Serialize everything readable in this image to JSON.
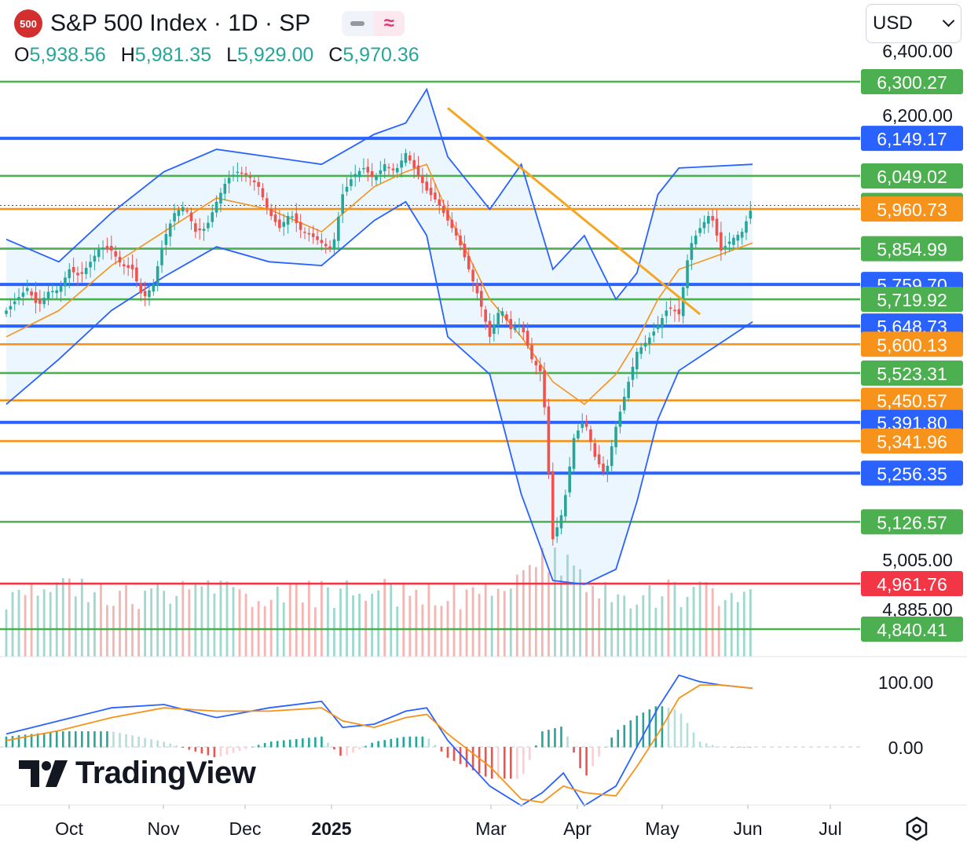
{
  "header": {
    "badge": "500",
    "title": "S&P 500 Index · 1D · SP",
    "ohlc": [
      {
        "key": "O",
        "value": "5,938.56"
      },
      {
        "key": "H",
        "value": "5,981.35"
      },
      {
        "key": "L",
        "value": "5,929.00"
      },
      {
        "key": "C",
        "value": "5,970.36"
      }
    ]
  },
  "currency": "USD",
  "brand": "TradingView",
  "colors": {
    "up": "#26a69a",
    "down": "#ef5350",
    "bollinger": "#2962ff",
    "bb_fill": "#e3f2fd",
    "ma": "#f7931a",
    "trendline": "#f5a623",
    "green_level": "#4caf50",
    "blue_level": "#2962ff",
    "orange_level": "#f7931a",
    "red_level": "#f23645",
    "macd": "#2962ff",
    "signal": "#f7931a"
  },
  "chart_data": {
    "type": "candlestick",
    "symbol": "S&P 500 Index",
    "interval": "1D",
    "x_ticks": [
      "Oct",
      "Nov",
      "Dec",
      "2025",
      "Mar",
      "Apr",
      "May",
      "Jun",
      "Jul"
    ],
    "y_ticks": [
      "6,400.00",
      "6,200.00",
      "5,005.00",
      "4,885.00"
    ],
    "price_range": [
      4810,
      6410
    ],
    "last_close": 5970.36,
    "levels": [
      {
        "label": "6,300.27",
        "value": 6300.27,
        "color": "green"
      },
      {
        "label": "6,149.17",
        "value": 6149.17,
        "color": "blue"
      },
      {
        "label": "6,049.02",
        "value": 6049.02,
        "color": "green"
      },
      {
        "label": "5,970.36",
        "value": 5970.36,
        "color": "green"
      },
      {
        "label": "5,960.73",
        "value": 5960.73,
        "color": "orange"
      },
      {
        "label": "5,854.99",
        "value": 5854.99,
        "color": "green"
      },
      {
        "label": "5,759.70",
        "value": 5759.7,
        "color": "blue"
      },
      {
        "label": "5,719.92",
        "value": 5719.92,
        "color": "green"
      },
      {
        "label": "5,648.73",
        "value": 5648.73,
        "color": "blue"
      },
      {
        "label": "5,600.13",
        "value": 5600.13,
        "color": "orange"
      },
      {
        "label": "5,523.31",
        "value": 5523.31,
        "color": "green"
      },
      {
        "label": "5,450.57",
        "value": 5450.57,
        "color": "orange"
      },
      {
        "label": "5,391.80",
        "value": 5391.8,
        "color": "blue"
      },
      {
        "label": "5,341.96",
        "value": 5341.96,
        "color": "orange"
      },
      {
        "label": "5,256.35",
        "value": 5256.35,
        "color": "blue"
      },
      {
        "label": "5,126.57",
        "value": 5126.57,
        "color": "green"
      },
      {
        "label": "4,961.76",
        "value": 4961.76,
        "color": "red"
      },
      {
        "label": "4,840.41",
        "value": 4840.41,
        "color": "green"
      }
    ],
    "close_path": [
      [
        0,
        5690
      ],
      [
        5,
        5720
      ],
      [
        10,
        5750
      ],
      [
        15,
        5700
      ],
      [
        20,
        5740
      ],
      [
        25,
        5745
      ],
      [
        30,
        5800
      ],
      [
        35,
        5780
      ],
      [
        40,
        5820
      ],
      [
        45,
        5860
      ],
      [
        50,
        5850
      ],
      [
        55,
        5810
      ],
      [
        60,
        5800
      ],
      [
        65,
        5720
      ],
      [
        70,
        5760
      ],
      [
        75,
        5880
      ],
      [
        80,
        5950
      ],
      [
        85,
        5970
      ],
      [
        90,
        5900
      ],
      [
        95,
        5910
      ],
      [
        100,
        5980
      ],
      [
        105,
        6040
      ],
      [
        110,
        6060
      ],
      [
        115,
        6050
      ],
      [
        120,
        6020
      ],
      [
        125,
        5950
      ],
      [
        130,
        5910
      ],
      [
        135,
        5950
      ],
      [
        140,
        5905
      ],
      [
        145,
        5890
      ],
      [
        150,
        5870
      ],
      [
        155,
        5850
      ],
      [
        160,
        6000
      ],
      [
        165,
        6050
      ],
      [
        170,
        6070
      ],
      [
        175,
        6040
      ],
      [
        180,
        6080
      ],
      [
        185,
        6060
      ],
      [
        190,
        6110
      ],
      [
        195,
        6060
      ],
      [
        200,
        6010
      ],
      [
        205,
        5980
      ],
      [
        210,
        5930
      ],
      [
        215,
        5880
      ],
      [
        220,
        5800
      ],
      [
        225,
        5720
      ],
      [
        230,
        5620
      ],
      [
        235,
        5700
      ],
      [
        240,
        5640
      ],
      [
        245,
        5650
      ],
      [
        250,
        5560
      ],
      [
        255,
        5520
      ],
      [
        260,
        5080
      ],
      [
        265,
        5160
      ],
      [
        270,
        5350
      ],
      [
        275,
        5400
      ],
      [
        280,
        5300
      ],
      [
        285,
        5250
      ],
      [
        290,
        5380
      ],
      [
        295,
        5480
      ],
      [
        300,
        5580
      ],
      [
        305,
        5610
      ],
      [
        310,
        5650
      ],
      [
        315,
        5700
      ],
      [
        320,
        5680
      ],
      [
        325,
        5860
      ],
      [
        330,
        5910
      ],
      [
        335,
        5950
      ],
      [
        340,
        5850
      ],
      [
        345,
        5880
      ],
      [
        350,
        5900
      ],
      [
        355,
        5970
      ]
    ],
    "bollinger_upper": [
      [
        0,
        5880
      ],
      [
        25,
        5820
      ],
      [
        50,
        5950
      ],
      [
        75,
        6060
      ],
      [
        100,
        6120
      ],
      [
        125,
        6100
      ],
      [
        150,
        6080
      ],
      [
        175,
        6160
      ],
      [
        190,
        6190
      ],
      [
        200,
        6280
      ],
      [
        210,
        6100
      ],
      [
        230,
        5960
      ],
      [
        245,
        6080
      ],
      [
        260,
        5800
      ],
      [
        275,
        5890
      ],
      [
        290,
        5720
      ],
      [
        300,
        5790
      ],
      [
        310,
        6000
      ],
      [
        320,
        6070
      ],
      [
        355,
        6080
      ]
    ],
    "bollinger_lower": [
      [
        0,
        5440
      ],
      [
        25,
        5560
      ],
      [
        50,
        5690
      ],
      [
        75,
        5780
      ],
      [
        100,
        5860
      ],
      [
        125,
        5820
      ],
      [
        150,
        5810
      ],
      [
        175,
        5930
      ],
      [
        190,
        5980
      ],
      [
        200,
        5890
      ],
      [
        210,
        5620
      ],
      [
        230,
        5520
      ],
      [
        245,
        5200
      ],
      [
        260,
        4970
      ],
      [
        275,
        4960
      ],
      [
        290,
        5000
      ],
      [
        300,
        5180
      ],
      [
        310,
        5400
      ],
      [
        320,
        5530
      ],
      [
        355,
        5660
      ]
    ],
    "moving_average": [
      [
        0,
        5620
      ],
      [
        25,
        5690
      ],
      [
        50,
        5810
      ],
      [
        75,
        5900
      ],
      [
        100,
        5990
      ],
      [
        125,
        5960
      ],
      [
        150,
        5900
      ],
      [
        175,
        6020
      ],
      [
        190,
        6060
      ],
      [
        200,
        6080
      ],
      [
        210,
        5950
      ],
      [
        230,
        5720
      ],
      [
        245,
        5620
      ],
      [
        260,
        5500
      ],
      [
        275,
        5440
      ],
      [
        290,
        5520
      ],
      [
        300,
        5610
      ],
      [
        310,
        5720
      ],
      [
        320,
        5800
      ],
      [
        355,
        5870
      ]
    ],
    "trendline": [
      [
        210,
        6230
      ],
      [
        330,
        5680
      ]
    ],
    "oscillator": {
      "y_ticks": [
        "100.00",
        "0.00"
      ],
      "range": [
        -95,
        125
      ],
      "macd": [
        [
          0,
          20
        ],
        [
          25,
          40
        ],
        [
          50,
          60
        ],
        [
          75,
          65
        ],
        [
          100,
          45
        ],
        [
          125,
          60
        ],
        [
          150,
          70
        ],
        [
          160,
          30
        ],
        [
          175,
          35
        ],
        [
          190,
          55
        ],
        [
          200,
          60
        ],
        [
          210,
          10
        ],
        [
          230,
          -60
        ],
        [
          245,
          -110
        ],
        [
          255,
          -70
        ],
        [
          265,
          -40
        ],
        [
          275,
          -100
        ],
        [
          290,
          -60
        ],
        [
          300,
          0
        ],
        [
          310,
          60
        ],
        [
          320,
          110
        ],
        [
          330,
          100
        ],
        [
          340,
          95
        ],
        [
          355,
          90
        ]
      ],
      "signal": [
        [
          0,
          10
        ],
        [
          25,
          25
        ],
        [
          50,
          45
        ],
        [
          75,
          60
        ],
        [
          100,
          55
        ],
        [
          125,
          55
        ],
        [
          150,
          60
        ],
        [
          160,
          40
        ],
        [
          175,
          30
        ],
        [
          190,
          45
        ],
        [
          200,
          50
        ],
        [
          210,
          20
        ],
        [
          230,
          -30
        ],
        [
          245,
          -80
        ],
        [
          255,
          -85
        ],
        [
          265,
          -60
        ],
        [
          275,
          -70
        ],
        [
          290,
          -75
        ],
        [
          300,
          -30
        ],
        [
          310,
          20
        ],
        [
          320,
          75
        ],
        [
          330,
          95
        ],
        [
          340,
          95
        ],
        [
          355,
          90
        ]
      ]
    }
  }
}
